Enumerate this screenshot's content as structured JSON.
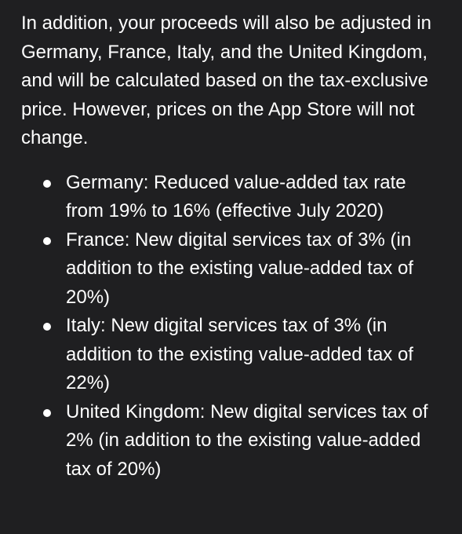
{
  "intro": "In addition, your proceeds will also be adjusted in Germany, France, Italy, and the United Kingdom, and will be calculated based on the tax-exclusive price. However, prices on the App Store will not change.",
  "bullets": [
    "Germany: Reduced value-added tax rate from 19% to 16% (effective July 2020)",
    "France: New digital services tax of 3% (in addition to the existing value-added tax of 20%)",
    "Italy: New digital services tax of 3% (in addition to the existing value-added tax of 22%)",
    "United Kingdom: New digital services tax of 2% (in addition to the existing value-added tax of 20%)"
  ]
}
